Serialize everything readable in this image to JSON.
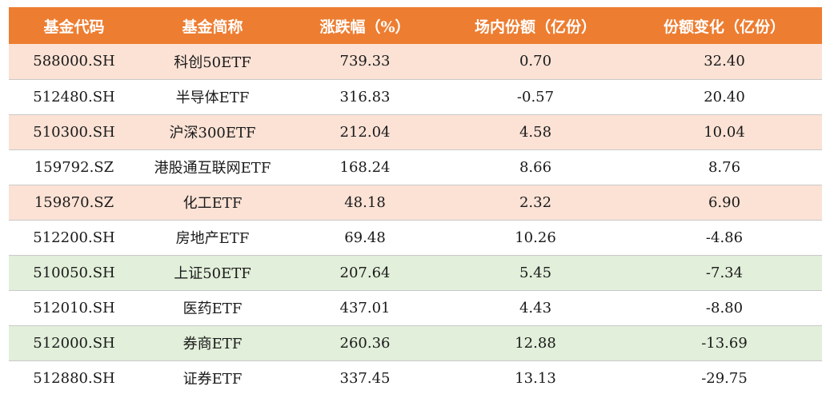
{
  "colors": {
    "header_bg": "#ed7d31",
    "header_text": "#ffffff",
    "row_orange": "#fbe2d5",
    "row_green": "#e2efda",
    "row_white": "#ffffff"
  },
  "headers": [
    "基金代码",
    "基金简称",
    "涨跌幅（%）",
    "场内份额（亿份）",
    "份额变化（亿份）"
  ],
  "rows": [
    {
      "style": "orange",
      "cells": [
        "588000.SH",
        "科创50ETF",
        "739.33",
        "0.70",
        "32.40"
      ]
    },
    {
      "style": "white",
      "cells": [
        "512480.SH",
        "半导体ETF",
        "316.83",
        "-0.57",
        "20.40"
      ]
    },
    {
      "style": "orange",
      "cells": [
        "510300.SH",
        "沪深300ETF",
        "212.04",
        "4.58",
        "10.04"
      ]
    },
    {
      "style": "white",
      "cells": [
        "159792.SZ",
        "港股通互联网ETF",
        "168.24",
        "8.66",
        "8.76"
      ]
    },
    {
      "style": "orange",
      "cells": [
        "159870.SZ",
        "化工ETF",
        "48.18",
        "2.32",
        "6.90"
      ]
    },
    {
      "style": "white",
      "cells": [
        "512200.SH",
        "房地产ETF",
        "69.48",
        "10.26",
        "-4.86"
      ]
    },
    {
      "style": "green",
      "cells": [
        "510050.SH",
        "上证50ETF",
        "207.64",
        "5.45",
        "-7.34"
      ]
    },
    {
      "style": "white",
      "cells": [
        "512010.SH",
        "医药ETF",
        "437.01",
        "4.43",
        "-8.80"
      ]
    },
    {
      "style": "green",
      "cells": [
        "512000.SH",
        "券商ETF",
        "260.36",
        "12.88",
        "-13.69"
      ]
    },
    {
      "style": "white",
      "cells": [
        "512880.SH",
        "证券ETF",
        "337.45",
        "13.13",
        "-29.75"
      ]
    }
  ]
}
